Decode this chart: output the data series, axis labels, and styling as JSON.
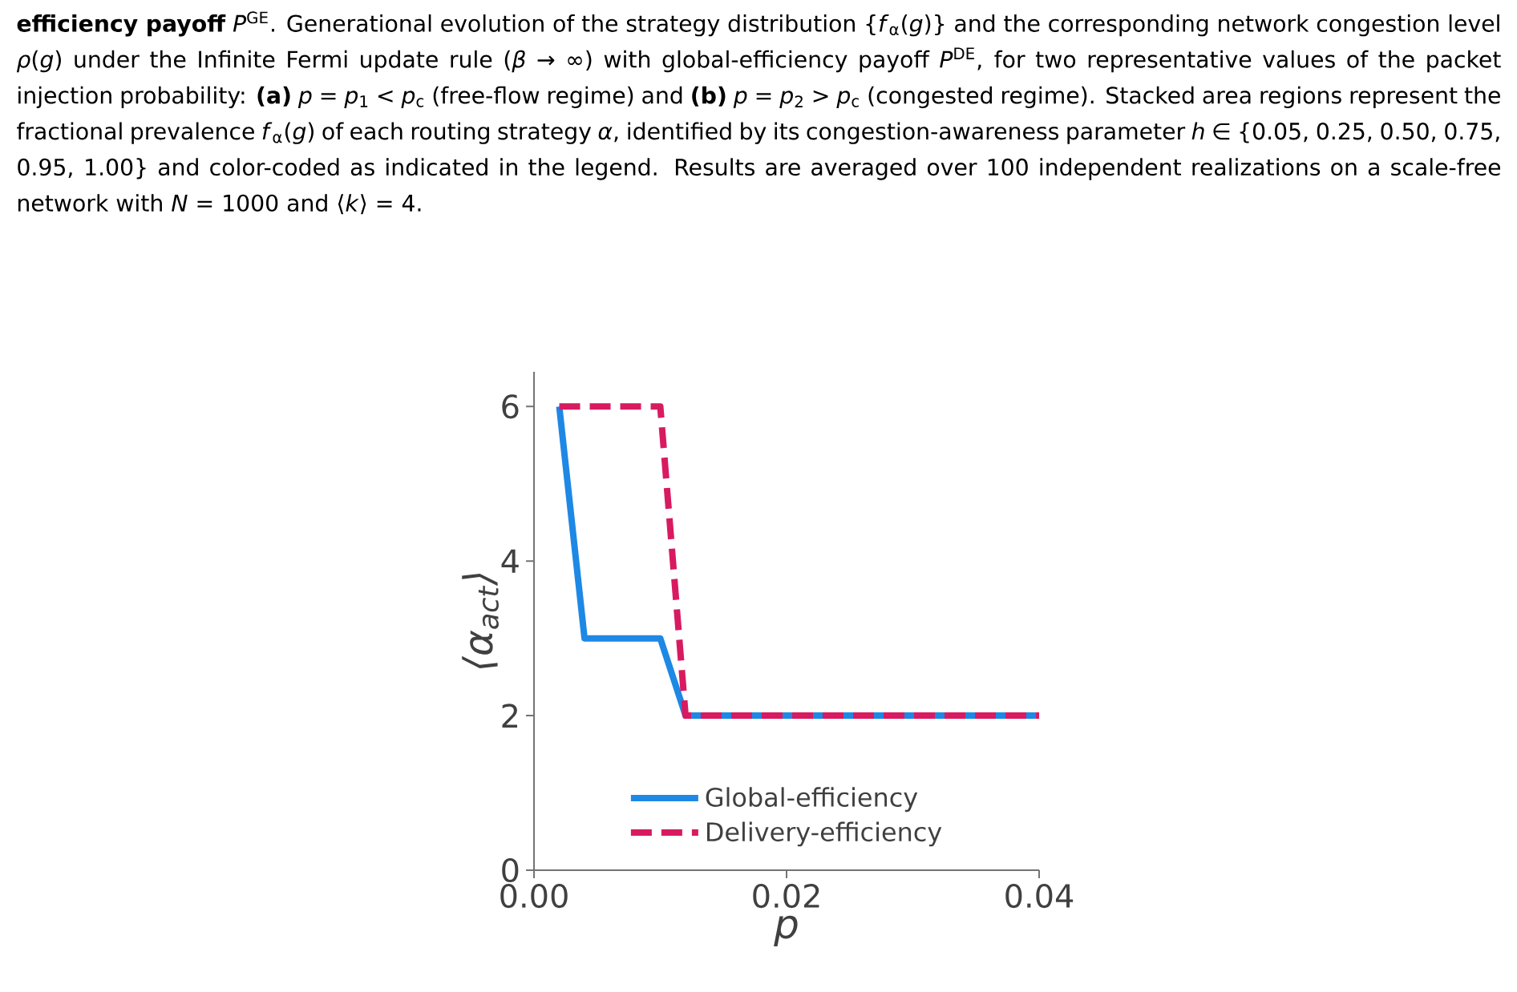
{
  "chart_data": {
    "type": "line",
    "annotations": [
      "**efficiency payoff** *P*$^{GE}$. Generational evolution of the strategy distribution {*f*$_{α}$(*g*)} and the corresponding network congestion level *ρ*(*g*) under the Infinite Fermi update rule (*β* → ∞) with global-efficiency payoff *P*$^{DE}$, for two representative values of the packet injection probability: **(a)** *p* = *p*$_{1}$ < *p*$_{c}$ (free-flow regime) and **(b)** *p* = *p*$_{2}$ > *p*$_{c}$ (congested regime). Stacked area regions represent the fractional prevalence *f*$_{α}$(*g*) of each routing strategy *α*, identified by its congestion-awareness parameter *h* ∈ {0.05, 0.25, 0.50, 0.75, 0.95, 1.00} and color-coded as indicated in the legend. Results are averaged over 100 independent realizations on a scale-free network with *N* = 1000 and ⟨*k*⟩ = 4."
    ],
    "xlabel": "p",
    "ylabel": "⟨*α*$_{act}$⟩",
    "xlim": [
      0,
      0.04
    ],
    "ylim": [
      0,
      6.45
    ],
    "xticks": [
      {
        "value": 0,
        "label": "0.00"
      },
      {
        "value": 0.02,
        "label": "0.02"
      },
      {
        "value": 0.04,
        "label": "0.04"
      }
    ],
    "yticks": [
      0,
      2,
      4,
      6
    ],
    "grid": false,
    "legend": "bottom",
    "series": [
      {
        "name": "Global-efficiency",
        "color": "#1e88e5",
        "line_style": "solid",
        "x": [
          0.002,
          0.004,
          0.01,
          0.012,
          0.04
        ],
        "values": [
          6,
          3,
          3,
          2,
          2
        ]
      },
      {
        "name": "Delivery-efficiency",
        "color": "#d81b60",
        "line_style": "dashed",
        "x": [
          0.002,
          0.01,
          0.012,
          0.04
        ],
        "values": [
          6,
          6,
          2,
          2
        ]
      }
    ]
  }
}
